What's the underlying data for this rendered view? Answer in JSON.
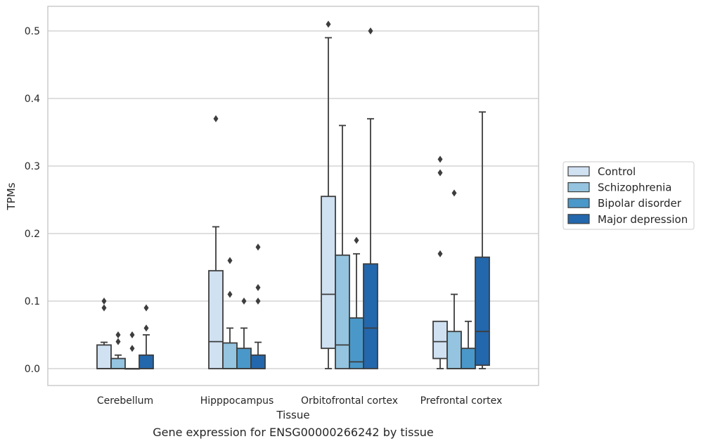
{
  "chart_data": {
    "type": "box",
    "title": "",
    "xlabel": "Tissue",
    "ylabel": "TPMs",
    "ylim": [
      -0.025,
      0.537
    ],
    "yticks": [
      0.0,
      0.1,
      0.2,
      0.3,
      0.4,
      0.5
    ],
    "ytick_labels": [
      "0.0",
      "0.1",
      "0.2",
      "0.3",
      "0.4",
      "0.5"
    ],
    "grid": true,
    "legend_position": "right",
    "categories": [
      "Cerebellum",
      "Hipppocampus",
      "Orbitofrontal cortex",
      "Prefrontal cortex"
    ],
    "series": [
      {
        "name": "Control",
        "color": "#d0e1f2",
        "boxes": [
          {
            "q1": 0.0,
            "median": 0.0,
            "q3": 0.035,
            "whislo": 0.0,
            "whishi": 0.039,
            "fliers": [
              0.1,
              0.09
            ]
          },
          {
            "q1": 0.0,
            "median": 0.04,
            "q3": 0.145,
            "whislo": 0.0,
            "whishi": 0.21,
            "fliers": [
              0.37
            ]
          },
          {
            "q1": 0.03,
            "median": 0.11,
            "q3": 0.255,
            "whislo": 0.0,
            "whishi": 0.49,
            "fliers": [
              0.51
            ]
          },
          {
            "q1": 0.015,
            "median": 0.04,
            "q3": 0.07,
            "whislo": 0.0,
            "whishi": 0.07,
            "fliers": [
              0.31,
              0.29,
              0.17
            ]
          }
        ]
      },
      {
        "name": "Schizophrenia",
        "color": "#94c4df",
        "boxes": [
          {
            "q1": 0.0,
            "median": 0.0,
            "q3": 0.015,
            "whislo": 0.0,
            "whishi": 0.02,
            "fliers": [
              0.05,
              0.04
            ]
          },
          {
            "q1": 0.0,
            "median": 0.0,
            "q3": 0.038,
            "whislo": 0.0,
            "whishi": 0.06,
            "fliers": [
              0.16,
              0.11
            ]
          },
          {
            "q1": 0.0,
            "median": 0.035,
            "q3": 0.168,
            "whislo": 0.0,
            "whishi": 0.36,
            "fliers": []
          },
          {
            "q1": 0.0,
            "median": 0.0,
            "q3": 0.055,
            "whislo": 0.0,
            "whishi": 0.11,
            "fliers": [
              0.26
            ]
          }
        ]
      },
      {
        "name": "Bipolar disorder",
        "color": "#4a98c9",
        "boxes": [
          {
            "q1": 0.0,
            "median": 0.0,
            "q3": 0.0,
            "whislo": 0.0,
            "whishi": 0.0,
            "fliers": [
              0.05,
              0.03
            ]
          },
          {
            "q1": 0.0,
            "median": 0.0,
            "q3": 0.03,
            "whislo": 0.0,
            "whishi": 0.06,
            "fliers": [
              0.1
            ]
          },
          {
            "q1": 0.0,
            "median": 0.01,
            "q3": 0.075,
            "whislo": 0.0,
            "whishi": 0.17,
            "fliers": [
              0.19
            ]
          },
          {
            "q1": 0.0,
            "median": 0.0,
            "q3": 0.03,
            "whislo": 0.0,
            "whishi": 0.07,
            "fliers": []
          }
        ]
      },
      {
        "name": "Major depression",
        "color": "#2367ac",
        "boxes": [
          {
            "q1": 0.0,
            "median": 0.0,
            "q3": 0.02,
            "whislo": 0.0,
            "whishi": 0.05,
            "fliers": [
              0.09,
              0.06
            ]
          },
          {
            "q1": 0.0,
            "median": 0.0,
            "q3": 0.02,
            "whislo": 0.0,
            "whishi": 0.039,
            "fliers": [
              0.18,
              0.12,
              0.1
            ]
          },
          {
            "q1": 0.0,
            "median": 0.06,
            "q3": 0.155,
            "whislo": 0.0,
            "whishi": 0.37,
            "fliers": [
              0.5
            ]
          },
          {
            "q1": 0.005,
            "median": 0.055,
            "q3": 0.165,
            "whislo": 0.0,
            "whishi": 0.38,
            "fliers": []
          }
        ]
      }
    ],
    "caption": "Gene expression for ENSG00000266242 by tissue"
  }
}
